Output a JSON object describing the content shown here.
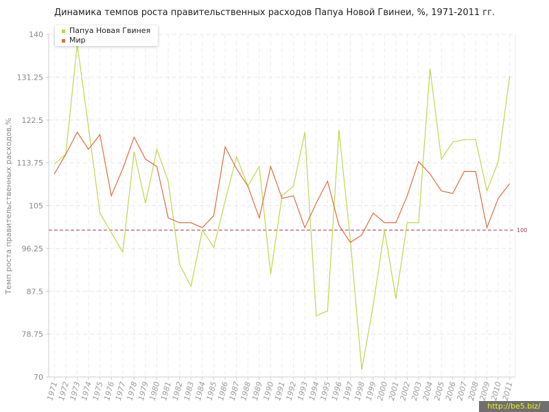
{
  "chart_data": {
    "type": "line",
    "title": "Динамика темпов роста правительственных расходов Папуа Новой Гвинеи, %, 1971-2011 гг.",
    "ylabel": "Темп роста правительственных расходов,%",
    "xlabel": "",
    "ylim": [
      70,
      140
    ],
    "yticks": [
      "140",
      "131.25",
      "122.5",
      "113.75",
      "105",
      "96.25",
      "87.5",
      "78.75",
      "70"
    ],
    "x": [
      "1971",
      "1972",
      "1973",
      "1974",
      "1975",
      "1976",
      "1977",
      "1978",
      "1979",
      "1980",
      "1981",
      "1982",
      "1983",
      "1984",
      "1985",
      "1986",
      "1987",
      "1988",
      "1989",
      "1990",
      "1991",
      "1992",
      "1993",
      "1994",
      "1995",
      "1996",
      "1997",
      "1998",
      "1999",
      "2000",
      "2001",
      "2002",
      "2003",
      "2004",
      "2005",
      "2006",
      "2007",
      "2008",
      "2009",
      "2010",
      "2011"
    ],
    "reference_line": {
      "value": 100,
      "label": "100",
      "color": "#9c3a4a"
    },
    "grid": true,
    "legend_position": "top-left",
    "series": [
      {
        "name": "Папуа Новая Гвинея",
        "color": "#b9d94a",
        "values": [
          113.5,
          115.5,
          138.0,
          121.0,
          103.5,
          99.5,
          95.5,
          116.0,
          105.5,
          116.5,
          110.0,
          93.0,
          88.5,
          100.0,
          96.5,
          106.0,
          115.0,
          109.0,
          113.0,
          91.0,
          107.0,
          109.0,
          120.0,
          82.5,
          83.5,
          120.5,
          98.0,
          71.5,
          84.5,
          100.0,
          86.0,
          101.5,
          101.5,
          133.0,
          114.5,
          118.0,
          118.5,
          118.5,
          108.0,
          114.0,
          131.5
        ]
      },
      {
        "name": "Мир",
        "color": "#e06a3c",
        "values": [
          111.5,
          115.5,
          120.0,
          116.5,
          119.5,
          107.0,
          112.5,
          119.0,
          114.5,
          113.0,
          102.5,
          101.5,
          101.5,
          100.5,
          103.0,
          117.0,
          112.5,
          109.0,
          102.5,
          113.0,
          106.5,
          107.0,
          100.5,
          105.5,
          110.0,
          101.0,
          97.5,
          99.0,
          103.5,
          101.5,
          101.5,
          107.0,
          114.0,
          111.5,
          108.0,
          107.5,
          112.0,
          112.0,
          100.5,
          106.5,
          109.5
        ]
      }
    ]
  },
  "watermark": "http://be5.biz/"
}
